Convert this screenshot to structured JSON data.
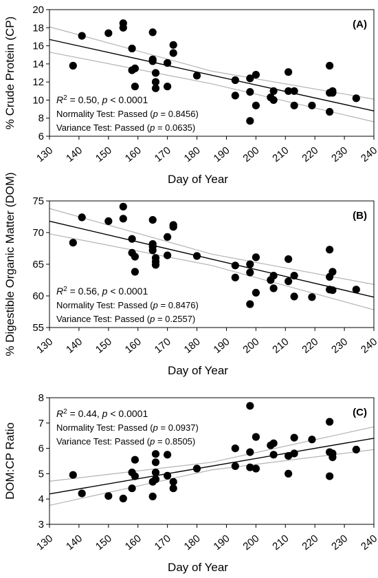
{
  "chart_data": [
    {
      "type": "scatter",
      "panel_label": "(A)",
      "xlabel": "Day of Year",
      "ylabel": "% Crude Protein (CP)",
      "xlim": [
        130,
        240
      ],
      "ylim": [
        6,
        20
      ],
      "xticks": [
        "130",
        "140",
        "150",
        "160",
        "170",
        "180",
        "190",
        "200",
        "210",
        "220",
        "230",
        "240"
      ],
      "yticks": [
        "6",
        "8",
        "10",
        "12",
        "14",
        "16",
        "18",
        "20"
      ],
      "stats": {
        "r2": "R",
        "r2_sup": "2",
        "r2_rest": " = 0.50, p < 0.0001",
        "normality": "Normality Test: Passed (p = 0.8456)",
        "variance": "Variance Test: Passed (p = 0.0635)"
      },
      "regression": {
        "x": [
          130,
          240
        ],
        "y": [
          16.7,
          8.8
        ]
      },
      "ci_upper": {
        "x": [
          130,
          185,
          240
        ],
        "y": [
          18.1,
          13.2,
          10.1
        ]
      },
      "ci_lower": {
        "x": [
          130,
          185,
          240
        ],
        "y": [
          15.3,
          11.8,
          7.6
        ]
      },
      "points": [
        [
          138,
          13.8
        ],
        [
          141,
          17.1
        ],
        [
          150,
          17.4
        ],
        [
          155,
          18.5
        ],
        [
          155,
          18.0
        ],
        [
          158,
          15.7
        ],
        [
          158,
          13.3
        ],
        [
          159,
          13.5
        ],
        [
          159,
          11.5
        ],
        [
          165,
          17.5
        ],
        [
          165,
          14.5
        ],
        [
          165,
          14.3
        ],
        [
          166,
          13.0
        ],
        [
          166,
          12.0
        ],
        [
          166,
          11.3
        ],
        [
          170,
          14.1
        ],
        [
          170,
          11.5
        ],
        [
          172,
          16.1
        ],
        [
          172,
          15.2
        ],
        [
          180,
          12.7
        ],
        [
          193,
          12.2
        ],
        [
          193,
          10.5
        ],
        [
          198,
          12.4
        ],
        [
          198,
          10.9
        ],
        [
          198,
          7.7
        ],
        [
          200,
          12.8
        ],
        [
          200,
          9.4
        ],
        [
          205,
          10.3
        ],
        [
          206,
          11.0
        ],
        [
          206,
          10.0
        ],
        [
          211,
          13.1
        ],
        [
          211,
          11.0
        ],
        [
          213,
          11.0
        ],
        [
          213,
          9.4
        ],
        [
          219,
          9.4
        ],
        [
          225,
          13.8
        ],
        [
          225,
          10.8
        ],
        [
          225,
          8.7
        ],
        [
          226,
          11.0
        ],
        [
          226,
          10.8
        ],
        [
          234,
          10.2
        ]
      ]
    },
    {
      "type": "scatter",
      "panel_label": "(B)",
      "xlabel": "Day of Year",
      "ylabel": "% Digestible Organic Matter (DOM)",
      "xlim": [
        130,
        240
      ],
      "ylim": [
        55,
        75
      ],
      "xticks": [
        "130",
        "140",
        "150",
        "160",
        "170",
        "180",
        "190",
        "200",
        "210",
        "220",
        "230",
        "240"
      ],
      "yticks": [
        "55",
        "60",
        "65",
        "70",
        "75"
      ],
      "stats": {
        "r2": "R",
        "r2_sup": "2",
        "r2_rest": " = 0.56, p < 0.0001",
        "normality": "Normality Test: Passed (p = 0.8476)",
        "variance": "Variance Test: Passed (p = 0.2557)"
      },
      "regression": {
        "x": [
          130,
          240
        ],
        "y": [
          71.8,
          59.8
        ]
      },
      "ci_upper": {
        "x": [
          130,
          185,
          240
        ],
        "y": [
          73.8,
          66.6,
          61.8
        ]
      },
      "ci_lower": {
        "x": [
          130,
          185,
          240
        ],
        "y": [
          69.8,
          64.8,
          57.8
        ]
      },
      "points": [
        [
          138,
          68.4
        ],
        [
          141,
          72.4
        ],
        [
          150,
          71.8
        ],
        [
          155,
          74.1
        ],
        [
          155,
          72.2
        ],
        [
          158,
          69.0
        ],
        [
          158,
          66.8
        ],
        [
          159,
          66.2
        ],
        [
          159,
          63.8
        ],
        [
          165,
          72.0
        ],
        [
          165,
          68.2
        ],
        [
          165,
          67.8
        ],
        [
          165,
          67.2
        ],
        [
          166,
          66.0
        ],
        [
          166,
          65.4
        ],
        [
          166,
          64.9
        ],
        [
          170,
          69.3
        ],
        [
          170,
          66.4
        ],
        [
          172,
          71.2
        ],
        [
          172,
          70.9
        ],
        [
          180,
          66.3
        ],
        [
          193,
          64.8
        ],
        [
          193,
          62.9
        ],
        [
          198,
          65.0
        ],
        [
          198,
          63.7
        ],
        [
          198,
          58.7
        ],
        [
          200,
          66.1
        ],
        [
          200,
          60.5
        ],
        [
          205,
          62.5
        ],
        [
          206,
          63.2
        ],
        [
          206,
          61.2
        ],
        [
          211,
          65.8
        ],
        [
          211,
          62.3
        ],
        [
          213,
          63.2
        ],
        [
          213,
          59.9
        ],
        [
          219,
          59.8
        ],
        [
          225,
          67.3
        ],
        [
          225,
          63.0
        ],
        [
          225,
          61.0
        ],
        [
          226,
          63.8
        ],
        [
          226,
          60.9
        ],
        [
          234,
          61.0
        ]
      ]
    },
    {
      "type": "scatter",
      "panel_label": "(C)",
      "xlabel": "Day of Year",
      "ylabel": "DOM:CP Ratio",
      "xlim": [
        130,
        240
      ],
      "ylim": [
        3,
        8
      ],
      "xticks": [
        "130",
        "140",
        "150",
        "160",
        "170",
        "180",
        "190",
        "200",
        "210",
        "220",
        "230",
        "240"
      ],
      "yticks": [
        "3",
        "4",
        "5",
        "6",
        "7",
        "8"
      ],
      "stats": {
        "r2": "R",
        "r2_sup": "2",
        "r2_rest": " = 0.44, p < 0.0001",
        "normality": "Normality Test: Passed (p = 0.0937)",
        "variance": "Variance Test: Passed (p = 0.8505)"
      },
      "regression": {
        "x": [
          130,
          240
        ],
        "y": [
          4.2,
          6.4
        ]
      },
      "ci_upper": {
        "x": [
          130,
          185,
          240
        ],
        "y": [
          4.7,
          5.45,
          6.85
        ]
      },
      "ci_lower": {
        "x": [
          130,
          185,
          240
        ],
        "y": [
          3.75,
          5.15,
          5.95
        ]
      },
      "points": [
        [
          138,
          4.95
        ],
        [
          141,
          4.22
        ],
        [
          150,
          4.12
        ],
        [
          155,
          4.02
        ],
        [
          158,
          5.05
        ],
        [
          158,
          4.42
        ],
        [
          159,
          5.55
        ],
        [
          159,
          4.9
        ],
        [
          165,
          4.1
        ],
        [
          165,
          4.68
        ],
        [
          166,
          5.78
        ],
        [
          166,
          5.45
        ],
        [
          166,
          5.05
        ],
        [
          166,
          4.78
        ],
        [
          170,
          5.75
        ],
        [
          170,
          4.92
        ],
        [
          172,
          4.68
        ],
        [
          172,
          4.42
        ],
        [
          180,
          5.2
        ],
        [
          193,
          6.0
        ],
        [
          193,
          5.3
        ],
        [
          198,
          7.68
        ],
        [
          198,
          5.85
        ],
        [
          198,
          5.25
        ],
        [
          200,
          6.45
        ],
        [
          200,
          5.2
        ],
        [
          205,
          6.12
        ],
        [
          206,
          6.2
        ],
        [
          206,
          5.75
        ],
        [
          211,
          5.7
        ],
        [
          211,
          5.0
        ],
        [
          213,
          6.42
        ],
        [
          213,
          5.8
        ],
        [
          219,
          6.35
        ],
        [
          225,
          7.05
        ],
        [
          225,
          5.85
        ],
        [
          225,
          4.9
        ],
        [
          226,
          5.8
        ],
        [
          226,
          5.65
        ],
        [
          234,
          5.95
        ]
      ]
    }
  ]
}
